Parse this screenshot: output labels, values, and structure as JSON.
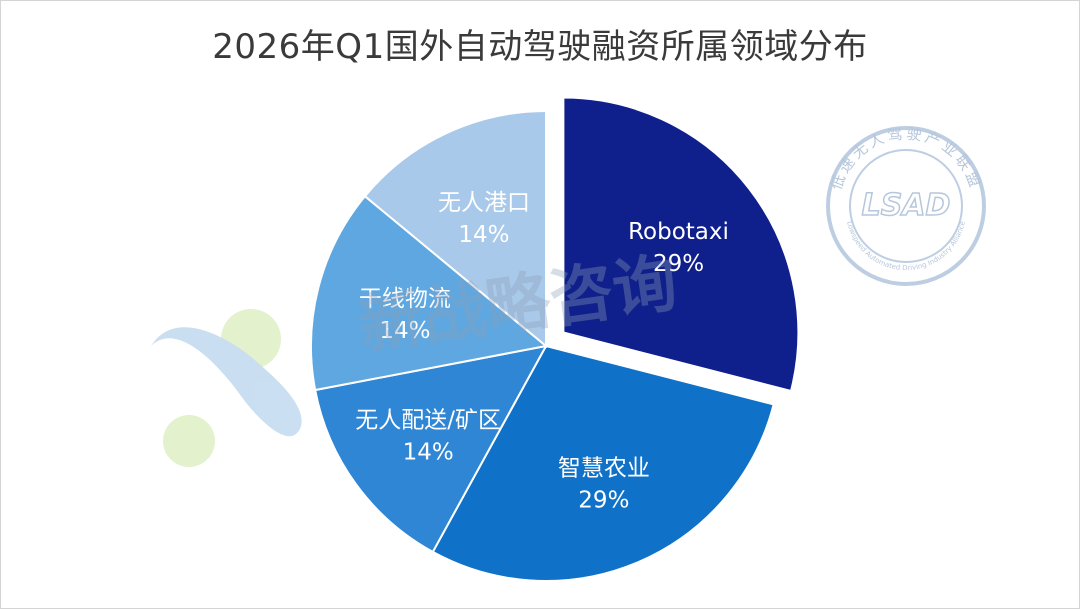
{
  "chart_data": {
    "type": "pie",
    "title": "2026年Q1国外自动驾驶融资所属领域分布",
    "slices": [
      {
        "name": "Robotaxi",
        "value": 29,
        "label": "29%",
        "color": "#0f1f8c",
        "exploded": true
      },
      {
        "name": "智慧农业",
        "value": 29,
        "label": "29%",
        "color": "#0f72c8",
        "exploded": false
      },
      {
        "name": "无人配送/矿区",
        "value": 14,
        "label": "14%",
        "color": "#2f86d4",
        "exploded": false
      },
      {
        "name": "干线物流",
        "value": 14,
        "label": "14%",
        "color": "#5ea7e0",
        "exploded": false
      },
      {
        "name": "无人港口",
        "value": 14,
        "label": "14%",
        "color": "#a8c9ea",
        "exploded": false
      }
    ],
    "legend": "none"
  },
  "watermarks": {
    "center_text": "新战略咨询",
    "seal_title": "低速无人驾驶产业联盟",
    "seal_logo": "LSAD",
    "seal_subtitle": "Lowspeed Automated Driving Industry Alliance"
  }
}
